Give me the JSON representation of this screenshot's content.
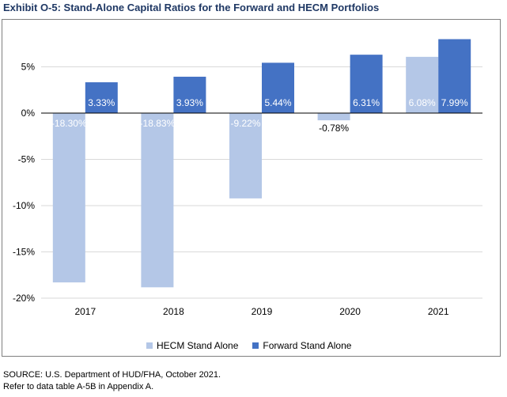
{
  "exhibit_title": "Exhibit O-5: Stand-Alone Capital Ratios for the Forward and HECM Portfolios",
  "source_lines": [
    "SOURCE: U.S. Department of HUD/FHA, October 2021.",
    "Refer to data table A-5B in Appendix A."
  ],
  "colors": {
    "hecm": "#b4c7e7",
    "forward": "#4472c4",
    "grid": "#d9d9d9",
    "axis": "#000000"
  },
  "chart_data": {
    "type": "bar",
    "title": "",
    "xlabel": "",
    "ylabel": "",
    "categories": [
      "2017",
      "2018",
      "2019",
      "2020",
      "2021"
    ],
    "series": [
      {
        "name": "HECM Stand Alone",
        "values": [
          -18.3,
          -18.83,
          -9.22,
          -0.78,
          6.08
        ],
        "labels": [
          "-18.30%",
          "-18.83%",
          "-9.22%",
          "-0.78%",
          "6.08%"
        ]
      },
      {
        "name": "Forward Stand Alone",
        "values": [
          3.33,
          3.93,
          5.44,
          6.31,
          7.99
        ],
        "labels": [
          "3.33%",
          "3.93%",
          "5.44%",
          "6.31%",
          "7.99%"
        ]
      }
    ],
    "ylim": [
      -20,
      10
    ],
    "yticks": [
      5,
      0,
      -5,
      -10,
      -15,
      -20
    ],
    "ytick_labels": [
      "5%",
      "0%",
      "-5%",
      "-10%",
      "-15%",
      "-20%"
    ],
    "grid": true,
    "legend_position": "bottom"
  }
}
